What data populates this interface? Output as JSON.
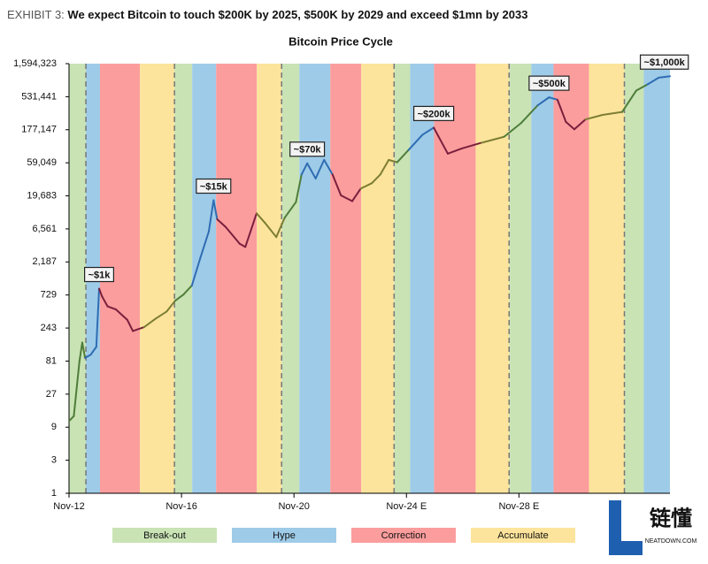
{
  "header": {
    "label": "EXHIBIT 3:",
    "title": "We expect Bitcoin to touch $200K by 2025, $500K by 2029 and exceed $1mn by 2033"
  },
  "watermark": {
    "text": "链懂",
    "sub": "NEATDOWN.COM"
  },
  "chart_data": {
    "type": "line",
    "title": "Bitcoin Price Cycle",
    "log_scale": true,
    "line_width": 2,
    "xlim": [
      2012.83,
      2034.2
    ],
    "xticks": [
      {
        "value": 2012.83,
        "label": "Nov-12"
      },
      {
        "value": 2016.83,
        "label": "Nov-16"
      },
      {
        "value": 2020.83,
        "label": "Nov-20"
      },
      {
        "value": 2024.83,
        "label": "Nov-24 E"
      },
      {
        "value": 2028.83,
        "label": "Nov-28 E"
      }
    ],
    "ylim": [
      1,
      1594323
    ],
    "yticks": [
      1,
      3,
      9,
      27,
      81,
      243,
      729,
      {
        "value": 2187,
        "label": "2,187"
      },
      {
        "value": 6561,
        "label": "6,561"
      },
      {
        "value": 19683,
        "label": "19,683"
      },
      {
        "value": 59049,
        "label": "59,049"
      },
      {
        "value": 177147,
        "label": "177,147"
      },
      {
        "value": 531441,
        "label": "531,441"
      },
      {
        "value": 1594323,
        "label": "1,594,323"
      }
    ],
    "x": [
      2012.83,
      2013.0,
      2013.2,
      2013.3,
      2013.4,
      2013.6,
      2013.8,
      2013.9,
      2014.0,
      2014.2,
      2014.5,
      2014.9,
      2015.1,
      2015.5,
      2015.9,
      2016.3,
      2016.6,
      2016.9,
      2017.2,
      2017.5,
      2017.8,
      2017.97,
      2018.1,
      2018.4,
      2018.9,
      2019.1,
      2019.5,
      2019.8,
      2020.2,
      2020.5,
      2020.9,
      2021.1,
      2021.3,
      2021.6,
      2021.9,
      2022.2,
      2022.5,
      2022.9,
      2023.2,
      2023.6,
      2023.9,
      2024.2,
      2024.5,
      2024.9,
      2025.4,
      2025.8,
      2026.3,
      2026.8,
      2027.5,
      2028.3,
      2028.9,
      2029.5,
      2029.9,
      2030.2,
      2030.5,
      2030.8,
      2031.2,
      2031.8,
      2032.5,
      2033.0,
      2033.4,
      2033.8,
      2034.2
    ],
    "values": [
      11,
      13,
      80,
      150,
      90,
      100,
      130,
      900,
      700,
      500,
      450,
      320,
      220,
      250,
      330,
      420,
      600,
      740,
      1000,
      2500,
      6000,
      17000,
      9000,
      7000,
      4000,
      3600,
      11000,
      8000,
      5000,
      9500,
      16000,
      40000,
      58000,
      35000,
      65000,
      40000,
      20000,
      16500,
      25000,
      30000,
      40000,
      65000,
      60000,
      90000,
      150000,
      190000,
      80000,
      95000,
      115000,
      140000,
      220000,
      400000,
      520000,
      480000,
      230000,
      180000,
      250000,
      290000,
      320000,
      650000,
      800000,
      1000000,
      1050000
    ],
    "phases": [
      {
        "name": "Break-out",
        "color": "#c9e3b5",
        "line_color": "#4f7d3a",
        "spans": [
          [
            2012.83,
            2013.43
          ],
          [
            2016.58,
            2017.21
          ],
          [
            2020.39,
            2021.02
          ],
          [
            2024.39,
            2024.96
          ],
          [
            2028.48,
            2029.27
          ],
          [
            2032.58,
            2033.27
          ]
        ]
      },
      {
        "name": "Hype",
        "color": "#9ecbe8",
        "line_color": "#2f6db3",
        "spans": [
          [
            2013.43,
            2013.93
          ],
          [
            2017.21,
            2018.06
          ],
          [
            2021.02,
            2022.12
          ],
          [
            2024.96,
            2025.81
          ],
          [
            2029.27,
            2030.06
          ],
          [
            2033.27,
            2034.2
          ]
        ]
      },
      {
        "name": "Correction",
        "color": "#fb9d9d",
        "line_color": "#7a1f3d",
        "spans": [
          [
            2013.93,
            2015.35
          ],
          [
            2018.06,
            2019.51
          ],
          [
            2022.12,
            2023.22
          ],
          [
            2025.81,
            2027.29
          ],
          [
            2030.06,
            2031.32
          ]
        ]
      },
      {
        "name": "Accumulate",
        "color": "#fde49c",
        "line_color": "#7d7d34",
        "spans": [
          [
            2015.35,
            2016.58
          ],
          [
            2019.51,
            2020.39
          ],
          [
            2023.22,
            2024.39
          ],
          [
            2027.29,
            2028.48
          ],
          [
            2031.32,
            2032.58
          ]
        ]
      }
    ],
    "dashed_lines": [
      2013.43,
      2016.58,
      2020.39,
      2024.39,
      2028.48,
      2032.58
    ],
    "annotations": [
      {
        "text": "~$1k",
        "x": 2013.9,
        "y": 900
      },
      {
        "text": "~$15k",
        "x": 2017.97,
        "y": 17000
      },
      {
        "text": "~$70k",
        "x": 2021.3,
        "y": 58000
      },
      {
        "text": "~$200k",
        "x": 2025.8,
        "y": 190000
      },
      {
        "text": "~$500k",
        "x": 2029.9,
        "y": 520000
      },
      {
        "text": "~$1,000k",
        "x": 2034.0,
        "y": 1050000
      }
    ]
  }
}
